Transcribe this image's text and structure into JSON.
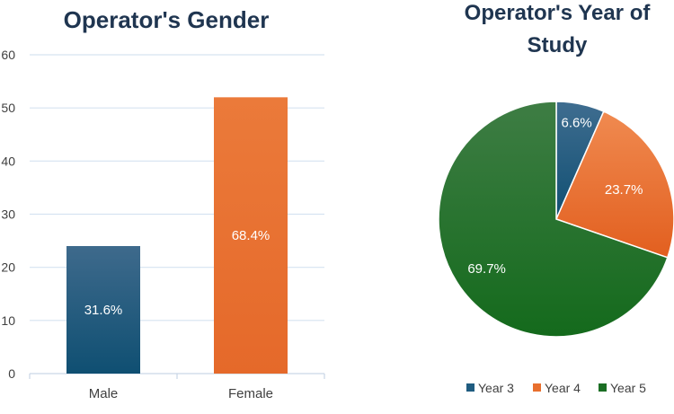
{
  "chart_data": [
    {
      "type": "bar",
      "title": "Operator's Gender",
      "categories": [
        "Male",
        "Female"
      ],
      "values": [
        24,
        52
      ],
      "data_labels": [
        "31.6%",
        "68.4%"
      ],
      "colors": [
        "#1f5c80",
        "#e86f2e"
      ],
      "ylim": [
        0,
        60
      ],
      "yticks": [
        0,
        10,
        20,
        30,
        40,
        50,
        60
      ],
      "grid": true,
      "xlabel": "",
      "ylabel": ""
    },
    {
      "type": "pie",
      "title_lines": [
        "Operator's Year of",
        "Study"
      ],
      "labels": [
        "Year 3",
        "Year 4",
        "Year 5"
      ],
      "values": [
        6.6,
        23.7,
        69.7
      ],
      "data_labels": [
        "6.6%",
        "23.7%",
        "69.7%"
      ],
      "colors": [
        "#1f5c80",
        "#e86f2e",
        "#1b6e24"
      ],
      "legend": "bottom"
    }
  ]
}
